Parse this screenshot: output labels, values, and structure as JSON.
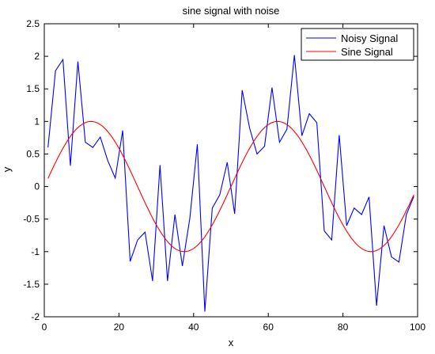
{
  "chart_data": {
    "type": "line",
    "title": "sine signal with noise",
    "xlabel": "x",
    "ylabel": "y",
    "xlim": [
      0,
      100
    ],
    "ylim": [
      -2,
      2.5
    ],
    "xticks": [
      0,
      20,
      40,
      60,
      80,
      100
    ],
    "yticks": [
      -2,
      -1.5,
      -1,
      -0.5,
      0,
      0.5,
      1,
      1.5,
      2,
      2.5
    ],
    "grid": false,
    "legend_position": "top-right",
    "series": [
      {
        "name": "Noisy Signal",
        "color": "#0000ff",
        "x": [
          1,
          3,
          5,
          7,
          9,
          11,
          13,
          15,
          17,
          19,
          21,
          23,
          25,
          27,
          29,
          31,
          33,
          35,
          37,
          39,
          41,
          43,
          45,
          47,
          49,
          51,
          53,
          55,
          57,
          59,
          61,
          63,
          65,
          67,
          69,
          71,
          73,
          75,
          77,
          79,
          81,
          83,
          85,
          87,
          89,
          91,
          93,
          95,
          97,
          99
        ],
        "values": [
          0.6,
          1.78,
          1.95,
          0.32,
          1.92,
          0.68,
          0.6,
          0.76,
          0.4,
          0.13,
          0.86,
          -1.15,
          -0.82,
          -0.7,
          -1.45,
          0.33,
          -1.45,
          -0.43,
          -1.22,
          -0.48,
          0.65,
          -1.92,
          -0.33,
          -0.13,
          0.37,
          -0.42,
          1.48,
          0.9,
          0.5,
          0.62,
          1.52,
          0.68,
          0.88,
          2.02,
          0.78,
          1.12,
          0.98,
          -0.68,
          -0.82,
          0.79,
          -0.6,
          -0.33,
          -0.43,
          -0.16,
          -1.83,
          -0.6,
          -1.08,
          -1.16,
          -0.43,
          -0.15
        ]
      },
      {
        "name": "Sine Signal",
        "color": "#ff0000",
        "function": "sin(2*pi*x/50)",
        "x_range": [
          1,
          99
        ]
      }
    ]
  }
}
